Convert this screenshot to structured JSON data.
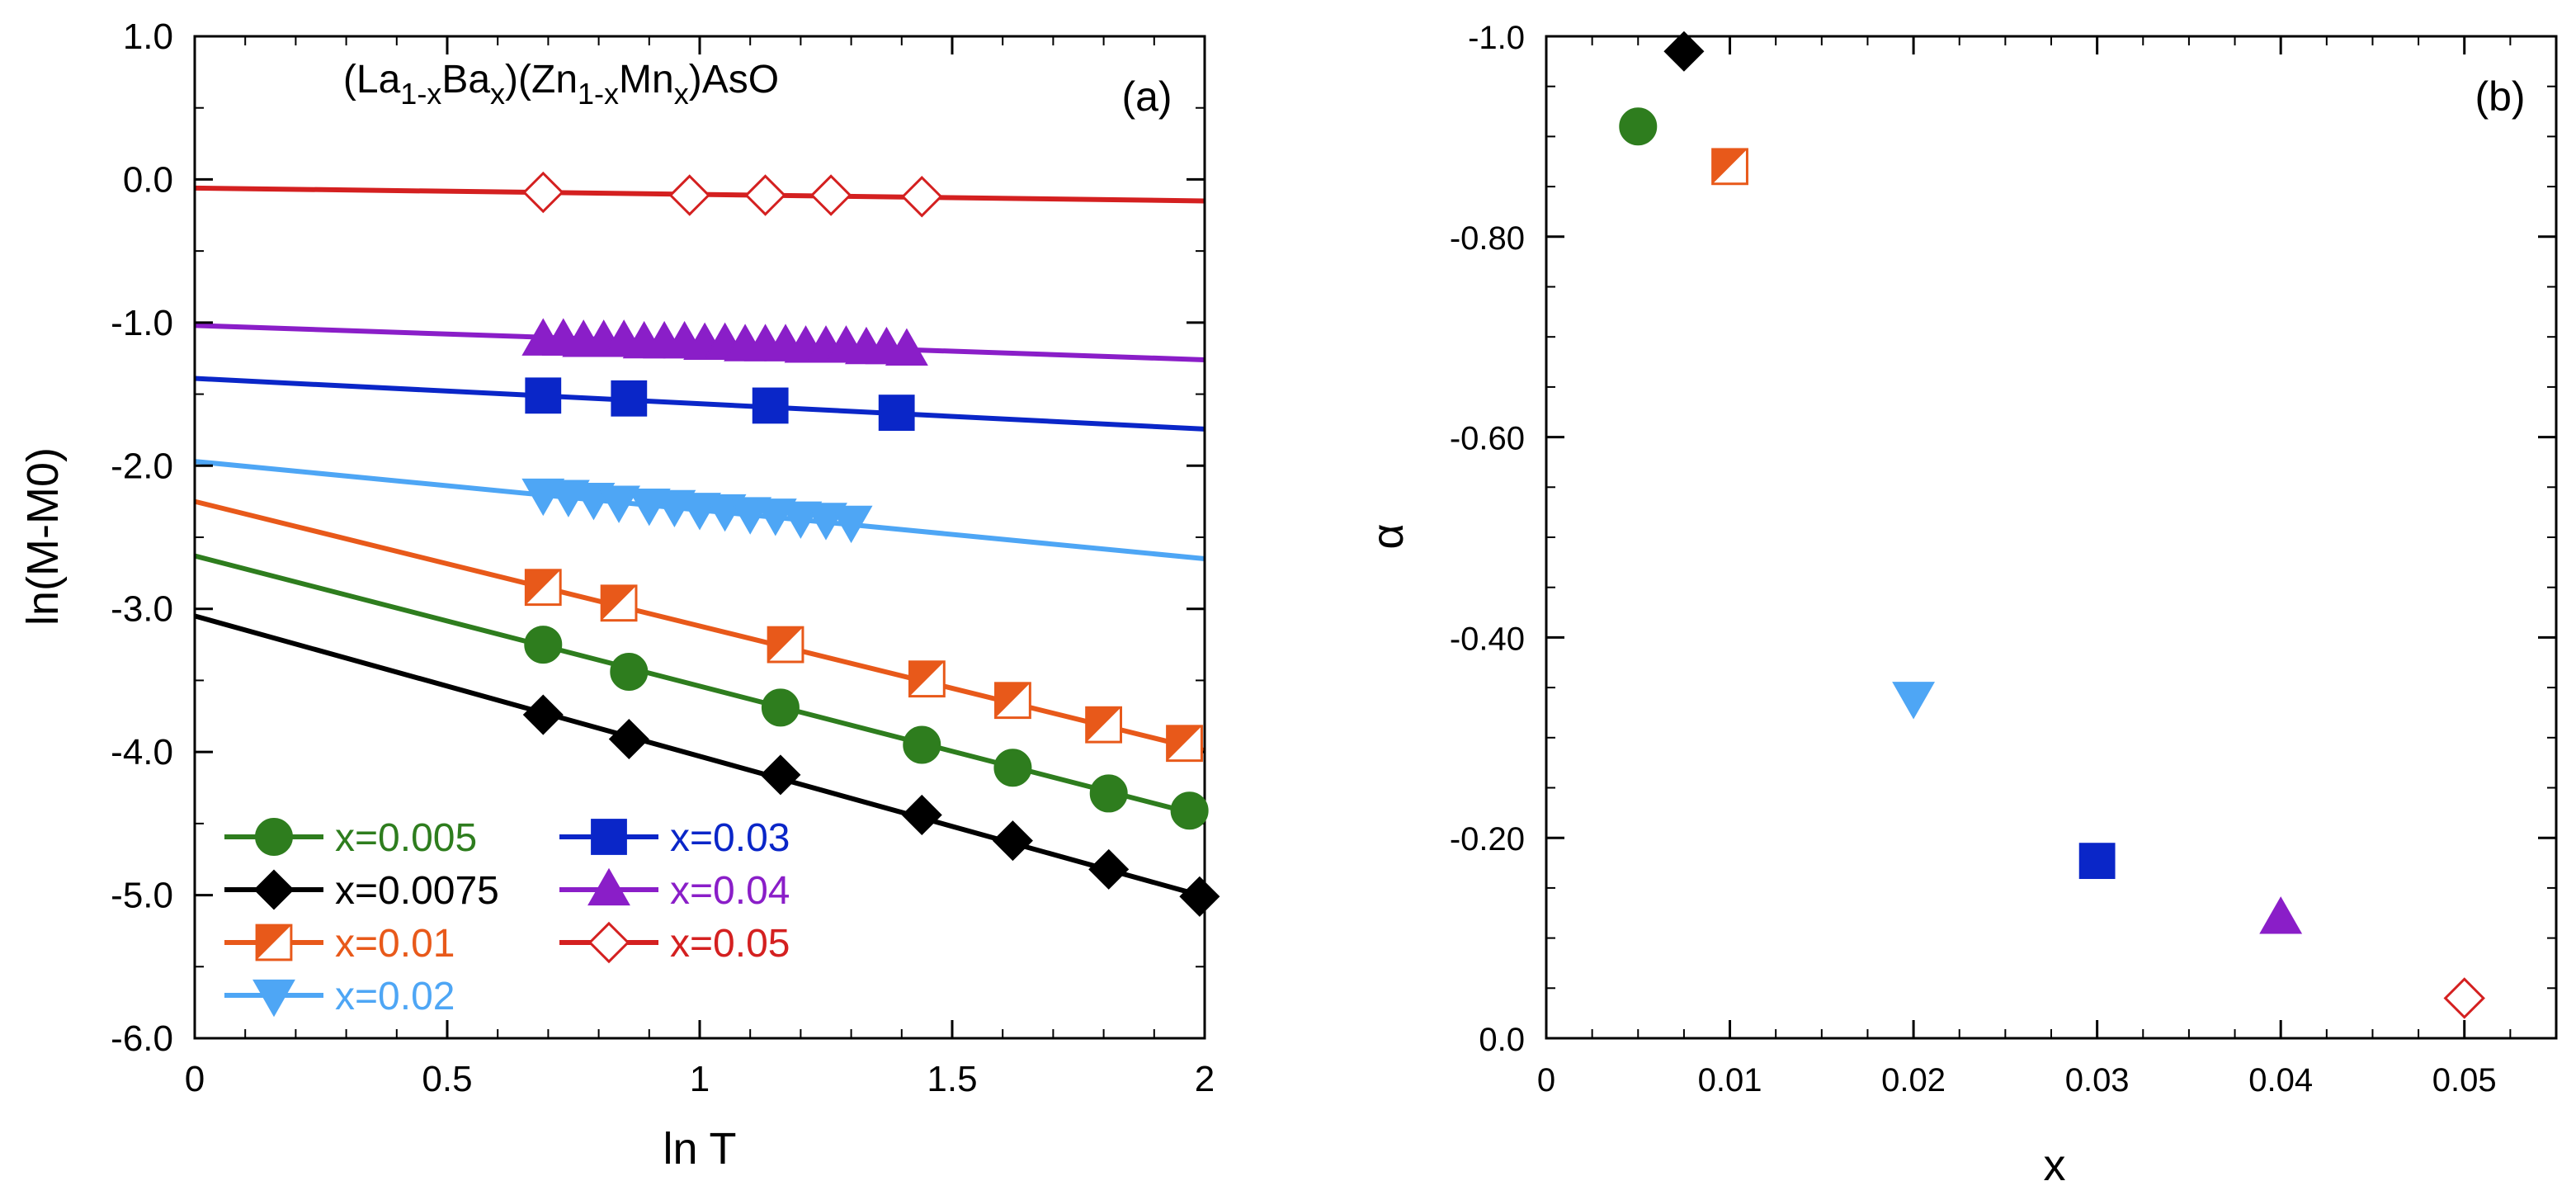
{
  "chart_data": [
    {
      "panel": "a",
      "type": "scatter",
      "panel_label": "(a)",
      "title": "(La1-xBax)(Zn1-xMnx)AsO",
      "title_parts": [
        "(La",
        "1-x",
        "Ba",
        "x",
        ")(Zn",
        "1-x",
        "Mn",
        "x",
        ")AsO"
      ],
      "xlabel": "ln T",
      "ylabel": "ln(M-M0)",
      "xlim": [
        0,
        2
      ],
      "ylim": [
        -6,
        1
      ],
      "xticks": [
        0,
        0.5,
        1,
        1.5,
        2
      ],
      "xtick_labels": [
        "0",
        "0.5",
        "1",
        "1.5",
        "2"
      ],
      "yticks": [
        1,
        0,
        -1,
        -2,
        -3,
        -4,
        -5,
        -6
      ],
      "ytick_labels": [
        "1.0",
        "0.0",
        "-1.0",
        "-2.0",
        "-3.0",
        "-4.0",
        "-5.0",
        "-6.0"
      ],
      "legend_position": "bottom-left",
      "series": [
        {
          "name": "x=0.005",
          "color": "#2e7d1e",
          "marker": "circle",
          "x": [
            0.69,
            0.86,
            1.16,
            1.44,
            1.62,
            1.81,
            1.97
          ],
          "y": [
            -3.25,
            -3.44,
            -3.69,
            -3.95,
            -4.11,
            -4.29,
            -4.41
          ],
          "fit": {
            "intercept": -2.63,
            "slope": -0.91
          }
        },
        {
          "name": "x=0.0075",
          "color": "#000000",
          "marker": "diamond",
          "x": [
            0.69,
            0.86,
            1.16,
            1.44,
            1.62,
            1.81,
            1.99
          ],
          "y": [
            -3.74,
            -3.91,
            -4.16,
            -4.44,
            -4.62,
            -4.82,
            -5.01
          ],
          "fit": {
            "intercept": -3.05,
            "slope": -0.98
          }
        },
        {
          "name": "x=0.01",
          "color": "#e8591a",
          "marker": "half-square",
          "x": [
            0.69,
            0.84,
            1.17,
            1.45,
            1.62,
            1.8,
            1.96
          ],
          "y": [
            -2.85,
            -2.96,
            -3.25,
            -3.49,
            -3.64,
            -3.81,
            -3.94
          ],
          "fit": {
            "intercept": -2.25,
            "slope": -0.87
          }
        },
        {
          "name": "x=0.02",
          "color": "#4ea6f5",
          "marker": "triangle-down",
          "x": [
            0.69,
            0.74,
            0.79,
            0.84,
            0.9,
            0.95,
            1.0,
            1.05,
            1.1,
            1.15,
            1.2,
            1.25,
            1.3
          ],
          "y": [
            -2.2,
            -2.21,
            -2.23,
            -2.25,
            -2.27,
            -2.28,
            -2.3,
            -2.31,
            -2.33,
            -2.34,
            -2.36,
            -2.37,
            -2.39
          ],
          "fit": {
            "intercept": -1.97,
            "slope": -0.34
          }
        },
        {
          "name": "x=0.03",
          "color": "#0a26c8",
          "marker": "square",
          "x": [
            0.69,
            0.86,
            1.14,
            1.39
          ],
          "y": [
            -1.51,
            -1.53,
            -1.58,
            -1.63
          ],
          "fit": {
            "intercept": -1.39,
            "slope": -0.177
          }
        },
        {
          "name": "x=0.04",
          "color": "#8a1ec8",
          "marker": "triangle-up",
          "x": [
            0.69,
            0.73,
            0.77,
            0.81,
            0.85,
            0.89,
            0.93,
            0.97,
            1.01,
            1.05,
            1.09,
            1.13,
            1.17,
            1.21,
            1.25,
            1.29,
            1.33,
            1.37,
            1.41
          ],
          "y": [
            -1.12,
            -1.12,
            -1.13,
            -1.13,
            -1.13,
            -1.14,
            -1.14,
            -1.14,
            -1.15,
            -1.15,
            -1.16,
            -1.16,
            -1.16,
            -1.17,
            -1.17,
            -1.17,
            -1.18,
            -1.18,
            -1.19
          ],
          "fit": {
            "intercept": -1.02,
            "slope": -0.12
          }
        },
        {
          "name": "x=0.05",
          "color": "#d42020",
          "marker": "diamond-open",
          "x": [
            0.69,
            0.98,
            1.13,
            1.26,
            1.44
          ],
          "y": [
            -0.09,
            -0.11,
            -0.11,
            -0.11,
            -0.12
          ],
          "fit": {
            "intercept": -0.06,
            "slope": -0.045
          }
        }
      ]
    },
    {
      "panel": "b",
      "type": "scatter",
      "panel_label": "(b)",
      "xlabel": "x",
      "ylabel": "α",
      "xlim": [
        0,
        0.055
      ],
      "ylim": [
        0,
        -1
      ],
      "xticks": [
        0,
        0.01,
        0.02,
        0.03,
        0.04,
        0.05
      ],
      "xtick_labels": [
        "0",
        "0.01",
        "0.02",
        "0.03",
        "0.04",
        "0.05"
      ],
      "yticks": [
        -1,
        -0.8,
        -0.6,
        -0.4,
        -0.2,
        0
      ],
      "ytick_labels": [
        "-1.0",
        "-0.80",
        "-0.60",
        "-0.40",
        "-0.20",
        "0.0"
      ],
      "points": [
        {
          "x": 0.005,
          "y": -0.91,
          "marker": "circle",
          "color": "#2e7d1e"
        },
        {
          "x": 0.0075,
          "y": -0.985,
          "marker": "diamond",
          "color": "#000000"
        },
        {
          "x": 0.01,
          "y": -0.87,
          "marker": "half-square",
          "color": "#e8591a"
        },
        {
          "x": 0.02,
          "y": -0.34,
          "marker": "triangle-down",
          "color": "#4ea6f5"
        },
        {
          "x": 0.03,
          "y": -0.177,
          "marker": "square",
          "color": "#0a26c8"
        },
        {
          "x": 0.04,
          "y": -0.12,
          "marker": "triangle-up",
          "color": "#8a1ec8"
        },
        {
          "x": 0.05,
          "y": -0.04,
          "marker": "diamond-open",
          "color": "#d42020"
        }
      ]
    }
  ]
}
